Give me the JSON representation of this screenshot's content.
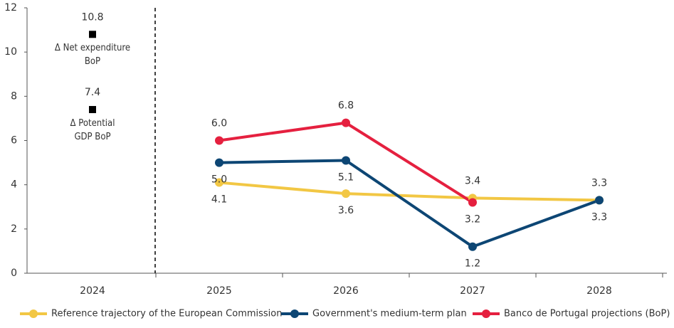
{
  "chart_data": {
    "type": "line",
    "categories": [
      "2024",
      "2025",
      "2026",
      "2027",
      "2028"
    ],
    "series": [
      {
        "name": "Reference trajectory of the European Commission",
        "color": "#f2c744",
        "values": [
          null,
          4.1,
          3.6,
          3.4,
          3.3
        ],
        "value_labels": [
          null,
          "4.1",
          "3.6",
          "3.4",
          "3.3"
        ]
      },
      {
        "name": "Government's medium-term plan",
        "color": "#0d4674",
        "values": [
          null,
          5,
          5.1,
          1.2,
          3.3
        ],
        "value_labels": [
          null,
          "5.0",
          "5.1",
          "1.2",
          "3.3"
        ]
      },
      {
        "name": "Banco de Portugal projections (BoP)",
        "color": "#e5203f",
        "values": [
          null,
          6,
          6.8,
          3.2,
          null
        ],
        "value_labels": [
          null,
          "6.0",
          "6.8",
          "3.2",
          null
        ]
      }
    ],
    "points": [
      {
        "label": "Δ Net expenditure BoP",
        "value": 10.8,
        "color": "#000000"
      },
      {
        "label": "Δ Potential GDP BoP",
        "value": 7.4,
        "color": "#000000"
      }
    ],
    "ylim": [
      0,
      12
    ],
    "yticks": [
      0,
      2,
      4,
      6,
      8,
      10,
      12
    ],
    "grid": false
  }
}
